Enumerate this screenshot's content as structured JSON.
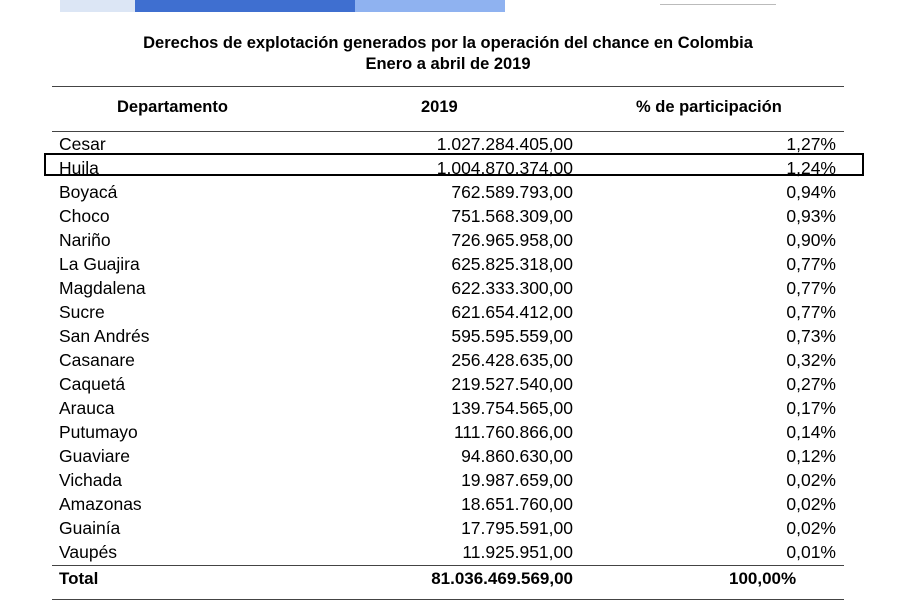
{
  "title": {
    "line1": "Derechos de explotación generados por la operación del chance en Colombia",
    "line2": "Enero a abril de 2019"
  },
  "table": {
    "headers": [
      "Departamento",
      "2019",
      "% de participación"
    ],
    "rows": [
      {
        "name": "Cesar",
        "value": "1.027.284.405,00",
        "pct": "1,27%"
      },
      {
        "name": "Huila",
        "value": "1.004.870.374,00",
        "pct": "1,24%",
        "highlighted": true
      },
      {
        "name": "Boyacá",
        "value": "762.589.793,00",
        "pct": "0,94%"
      },
      {
        "name": "Choco",
        "value": "751.568.309,00",
        "pct": "0,93%"
      },
      {
        "name": "Nariño",
        "value": "726.965.958,00",
        "pct": "0,90%"
      },
      {
        "name": "La Guajira",
        "value": "625.825.318,00",
        "pct": "0,77%"
      },
      {
        "name": "Magdalena",
        "value": "622.333.300,00",
        "pct": "0,77%"
      },
      {
        "name": "Sucre",
        "value": "621.654.412,00",
        "pct": "0,77%"
      },
      {
        "name": "San Andrés",
        "value": "595.595.559,00",
        "pct": "0,73%"
      },
      {
        "name": "Casanare",
        "value": "256.428.635,00",
        "pct": "0,32%"
      },
      {
        "name": "Caquetá",
        "value": "219.527.540,00",
        "pct": "0,27%"
      },
      {
        "name": "Arauca",
        "value": "139.754.565,00",
        "pct": "0,17%"
      },
      {
        "name": "Putumayo",
        "value": "111.760.866,00",
        "pct": "0,14%"
      },
      {
        "name": "Guaviare",
        "value": "94.860.630,00",
        "pct": "0,12%"
      },
      {
        "name": "Vichada",
        "value": "19.987.659,00",
        "pct": "0,02%"
      },
      {
        "name": "Amazonas",
        "value": "18.651.760,00",
        "pct": "0,02%"
      },
      {
        "name": "Guainía",
        "value": "17.795.591,00",
        "pct": "0,02%"
      },
      {
        "name": "Vaupés",
        "value": "11.925.951,00",
        "pct": "0,01%"
      }
    ],
    "total": {
      "label": "Total",
      "value": "81.036.469.569,00",
      "pct": "100,00%"
    }
  }
}
